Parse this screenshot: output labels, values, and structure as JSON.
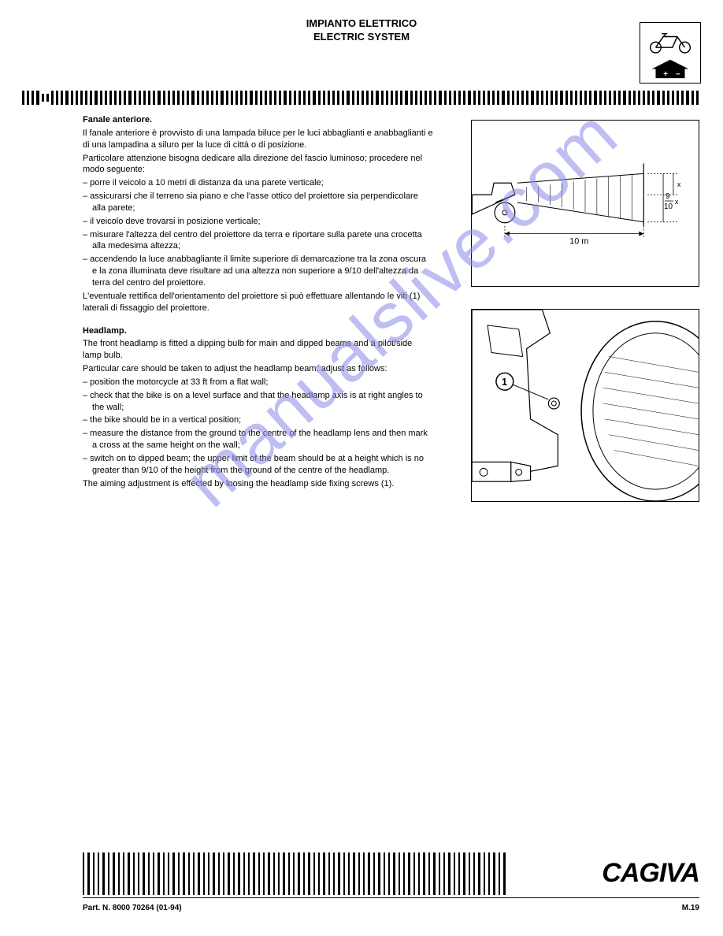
{
  "header": {
    "line1": "IMPIANTO ELETTRICO",
    "line2": "ELECTRIC SYSTEM"
  },
  "italian": {
    "heading": "Fanale anteriore.",
    "p1": "Il fanale anteriore è provvisto di una lampada biluce per le luci abbaglianti e anabbaglianti e di una lampadina a siluro per la luce di città o di posizione.",
    "p2": "Particolare attenzione bisogna dedicare alla direzione del fascio luminoso; procedere nel modo seguente:",
    "b1": "– porre il veicolo a 10 metri di distanza da una parete verticale;",
    "b2": "– assicurarsi che il terreno sia piano e che l'asse ottico del proiettore sia perpendicolare alla parete;",
    "b3": "– il veicolo deve trovarsi in posizione verticale;",
    "b4": "– misurare l'altezza del centro del proiettore da terra e riportare sulla parete una crocetta alla medesima altezza;",
    "b5": "– accendendo la luce anabbagliante il limite superiore di demarcazione tra la zona oscura e la zona illuminata deve risultare ad una altezza non superiore a 9/10 dell'altezza da terra del centro del proiettore.",
    "p3": "L'eventuale rettifica dell'orientamento del proiettore si può effettuare allentando le viti (1) laterali di fissaggio del proiettore."
  },
  "english": {
    "heading": "Headlamp.",
    "p1": "The front headlamp is fitted a dipping bulb for main and dipped beams and a pilot/side lamp bulb.",
    "p2": "Particular care should be taken to adjust the headlamp beam; adjust as follows:",
    "b1": "– position the motorcycle at 33 ft from a flat wall;",
    "b2": "– check that the bike is on a level surface and that the headlamp axis is at right angles to the wall;",
    "b3": "– the bike should be in a vertical position;",
    "b4": "– measure the distance from the ground to the centre of the headlamp lens and then mark a cross at the same height on the wall;",
    "b5": "– switch on to dipped beam; the upper limit of the beam should be at a height which is no greater than 9/10 of the height from the ground of the centre of the headlamp.",
    "p3": "The aiming adjustment is effected by loosing the headlamp side fixing screws (1)."
  },
  "diagram1": {
    "distance_label": "10 m",
    "fraction_top": "9",
    "fraction_bot": "10",
    "x_label": "x"
  },
  "diagram2": {
    "callout": "1"
  },
  "watermark": "manualslive.com",
  "brand": "CAGIVA",
  "footer": {
    "part": "Part. N. 8000 70264 (01-94)",
    "page": "M.19"
  },
  "style": {
    "text_color": "#000000",
    "watermark_color": "#8a8ae8",
    "bg": "#ffffff"
  }
}
